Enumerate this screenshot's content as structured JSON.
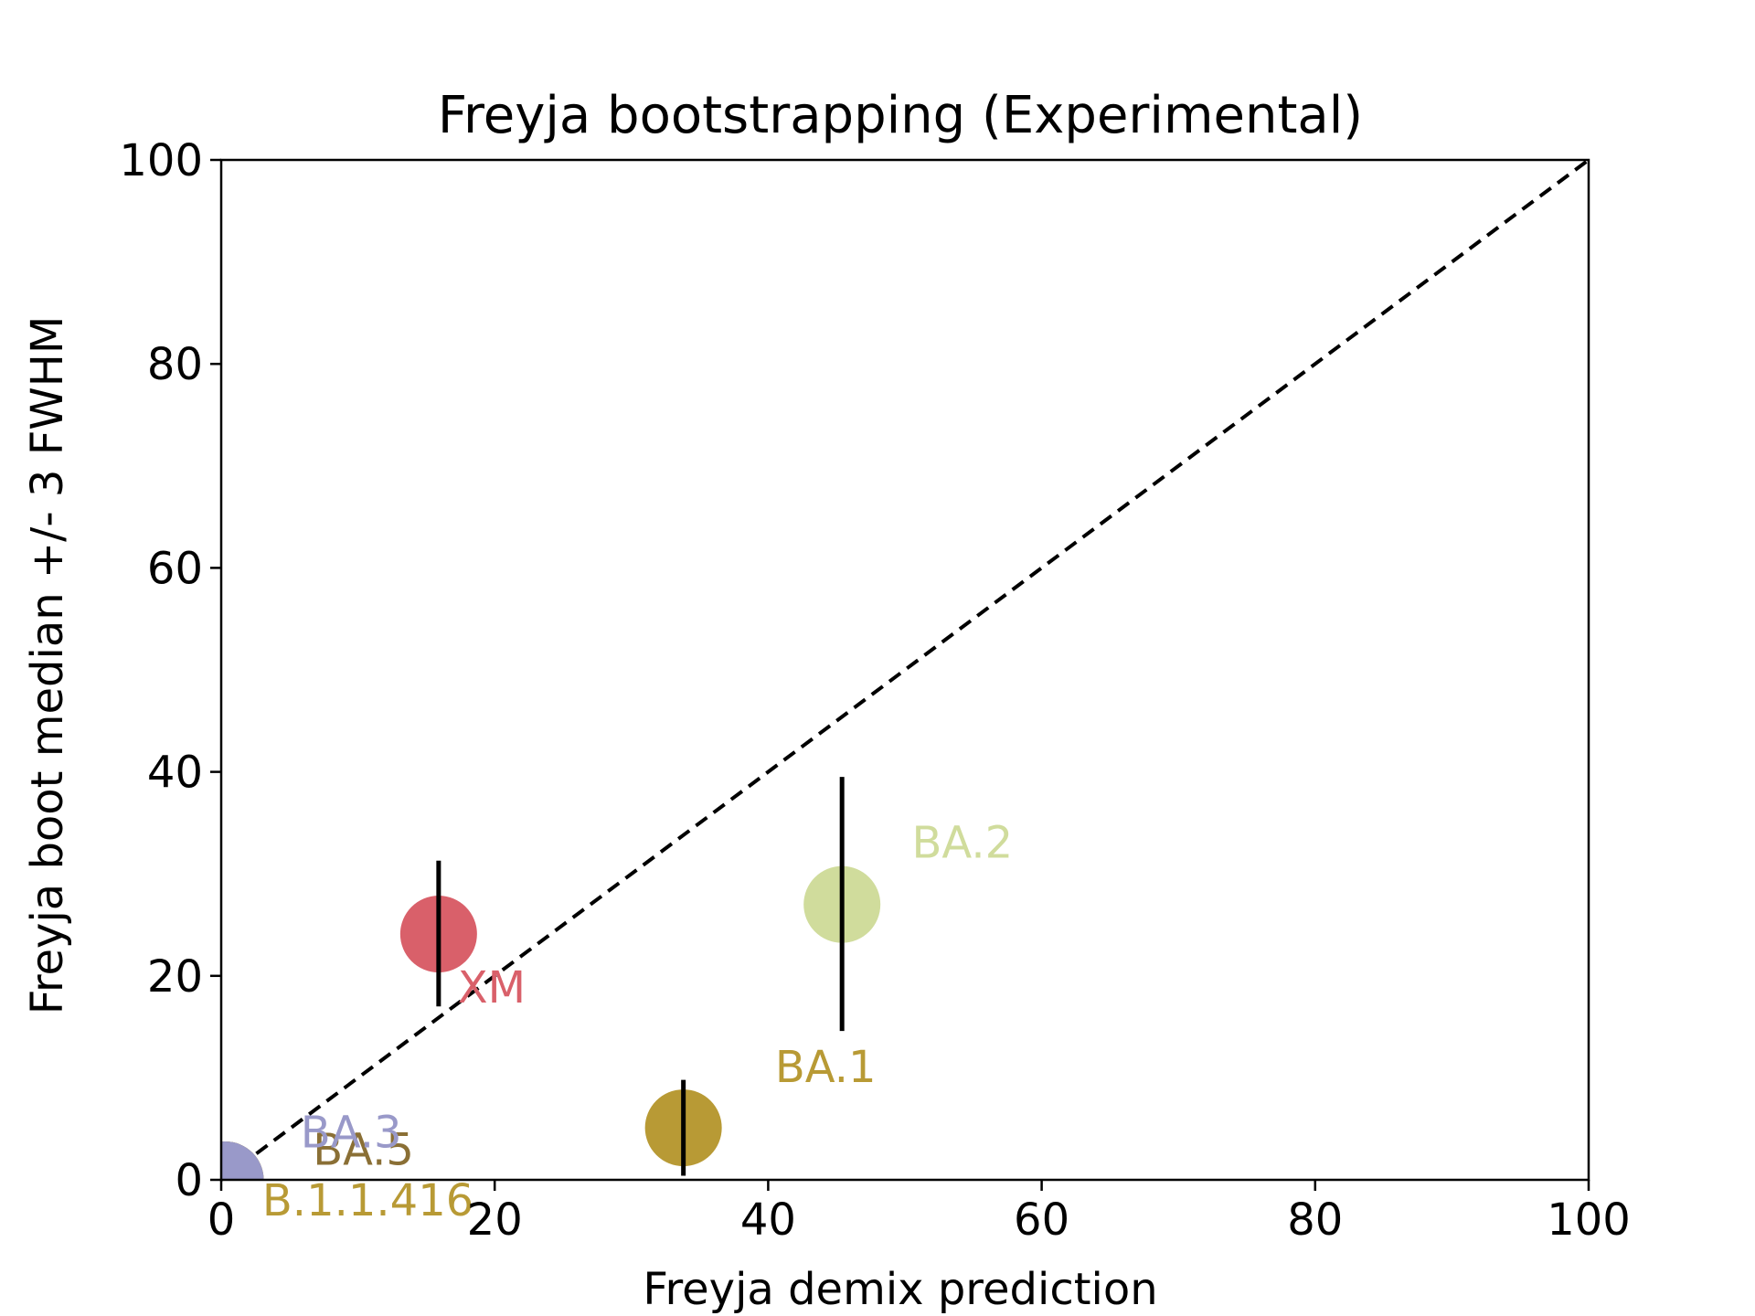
{
  "chart_data": {
    "type": "scatter",
    "title": "Freyja bootstrapping (Experimental)",
    "xlabel": "Freyja demix prediction",
    "ylabel": "Freyja boot median +/- 3 FWHM",
    "xlim": [
      0,
      100
    ],
    "ylim": [
      0,
      100
    ],
    "x_ticks": [
      "0",
      "20",
      "40",
      "60",
      "80",
      "100"
    ],
    "y_ticks": [
      "0",
      "20",
      "40",
      "60",
      "80",
      "100"
    ],
    "grid": false,
    "reference_line": {
      "style": "dashed",
      "color": "#000000",
      "from": [
        0,
        0
      ],
      "to": [
        100,
        100
      ]
    },
    "points": [
      {
        "label": "B.1.1.416",
        "x": 0.3,
        "y": 0.0,
        "err_low": 0.0,
        "err_high": 0.0,
        "color": "#b89a35",
        "label_x": 3,
        "label_y": -3.5
      },
      {
        "label": "BA.5",
        "x": 0.3,
        "y": 0.0,
        "err_low": 0.0,
        "err_high": 0.0,
        "color": "#8a6f35",
        "label_x": 6.7,
        "label_y": 1.5
      },
      {
        "label": "BA.3",
        "x": 0.3,
        "y": 0.0,
        "err_low": 0.0,
        "err_high": 0.0,
        "color": "#9999c9",
        "label_x": 5.8,
        "label_y": 3.2
      },
      {
        "label": "XM",
        "x": 15.9,
        "y": 24.1,
        "err_low": 17.0,
        "err_high": 31.3,
        "color": "#d9606a",
        "label_x": 17.3,
        "label_y": 17.4
      },
      {
        "label": "BA.1",
        "x": 33.8,
        "y": 5.1,
        "err_low": 0.4,
        "err_high": 9.8,
        "color": "#b89a35",
        "label_x": 40.5,
        "label_y": 9.6
      },
      {
        "label": "BA.2",
        "x": 45.4,
        "y": 27.0,
        "err_low": 14.6,
        "err_high": 39.5,
        "color": "#d0dc9c",
        "label_x": 50.5,
        "label_y": 31.6
      }
    ]
  }
}
